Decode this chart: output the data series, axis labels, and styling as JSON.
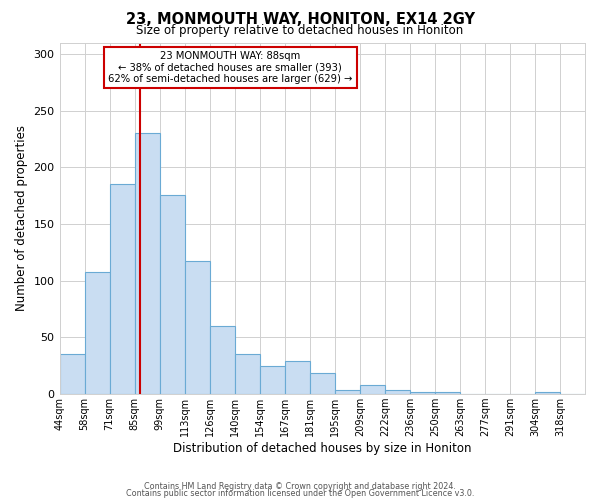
{
  "title": "23, MONMOUTH WAY, HONITON, EX14 2GY",
  "subtitle": "Size of property relative to detached houses in Honiton",
  "xlabel": "Distribution of detached houses by size in Honiton",
  "ylabel": "Number of detached properties",
  "bar_labels": [
    "44sqm",
    "58sqm",
    "71sqm",
    "85sqm",
    "99sqm",
    "113sqm",
    "126sqm",
    "140sqm",
    "154sqm",
    "167sqm",
    "181sqm",
    "195sqm",
    "209sqm",
    "222sqm",
    "236sqm",
    "250sqm",
    "263sqm",
    "277sqm",
    "291sqm",
    "304sqm",
    "318sqm"
  ],
  "bar_values": [
    35,
    108,
    185,
    230,
    176,
    117,
    60,
    35,
    25,
    29,
    19,
    4,
    8,
    4,
    2,
    2,
    0,
    0,
    0,
    2,
    0
  ],
  "bar_color": "#c9ddf2",
  "bar_edgecolor": "#6aaad4",
  "vline_x_index": 3,
  "vline_color": "#cc0000",
  "annotation_text": "23 MONMOUTH WAY: 88sqm\n← 38% of detached houses are smaller (393)\n62% of semi-detached houses are larger (629) →",
  "annotation_box_edgecolor": "#cc0000",
  "annotation_box_facecolor": "#ffffff",
  "ylim": [
    0,
    310
  ],
  "yticks": [
    0,
    50,
    100,
    150,
    200,
    250,
    300
  ],
  "footer_line1": "Contains HM Land Registry data © Crown copyright and database right 2024.",
  "footer_line2": "Contains public sector information licensed under the Open Government Licence v3.0.",
  "background_color": "#ffffff",
  "grid_color": "#d0d0d0"
}
